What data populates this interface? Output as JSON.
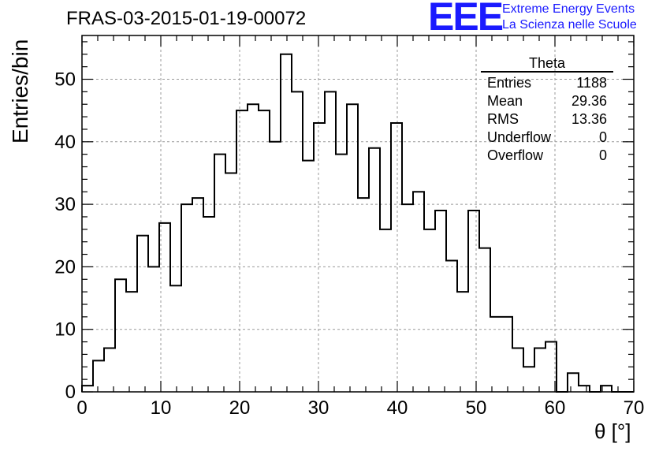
{
  "chart_data": {
    "type": "bar",
    "title": "FRAS-03-2015-01-19-00072",
    "xlabel": "θ [°]",
    "ylabel": "Entries/bin",
    "xlim": [
      0,
      70
    ],
    "ylim": [
      0,
      57
    ],
    "bin_width": 1.4,
    "xticks": [
      0,
      10,
      20,
      30,
      40,
      50,
      60,
      70
    ],
    "yticks": [
      0,
      10,
      20,
      30,
      40,
      50
    ],
    "grid": true,
    "values": [
      1,
      5,
      7,
      18,
      16,
      25,
      20,
      27,
      17,
      30,
      31,
      28,
      38,
      35,
      45,
      46,
      45,
      40,
      54,
      48,
      37,
      43,
      48,
      38,
      46,
      31,
      39,
      26,
      43,
      30,
      32,
      26,
      29,
      21,
      16,
      29,
      23,
      12,
      12,
      7,
      4,
      7,
      8,
      0,
      3,
      1,
      0,
      1,
      0,
      0
    ],
    "stats_box": {
      "title": "Theta",
      "rows": [
        {
          "label": "Entries",
          "value": "1188"
        },
        {
          "label": "Mean",
          "value": "29.36"
        },
        {
          "label": "RMS",
          "value": "13.36"
        },
        {
          "label": "Underflow",
          "value": "0"
        },
        {
          "label": "Overflow",
          "value": "0"
        }
      ]
    }
  },
  "logo": {
    "mark": "EEE",
    "line1": "Extreme Energy Events",
    "line2": "La Scienza nelle Scuole",
    "color": "#1a1aff"
  }
}
